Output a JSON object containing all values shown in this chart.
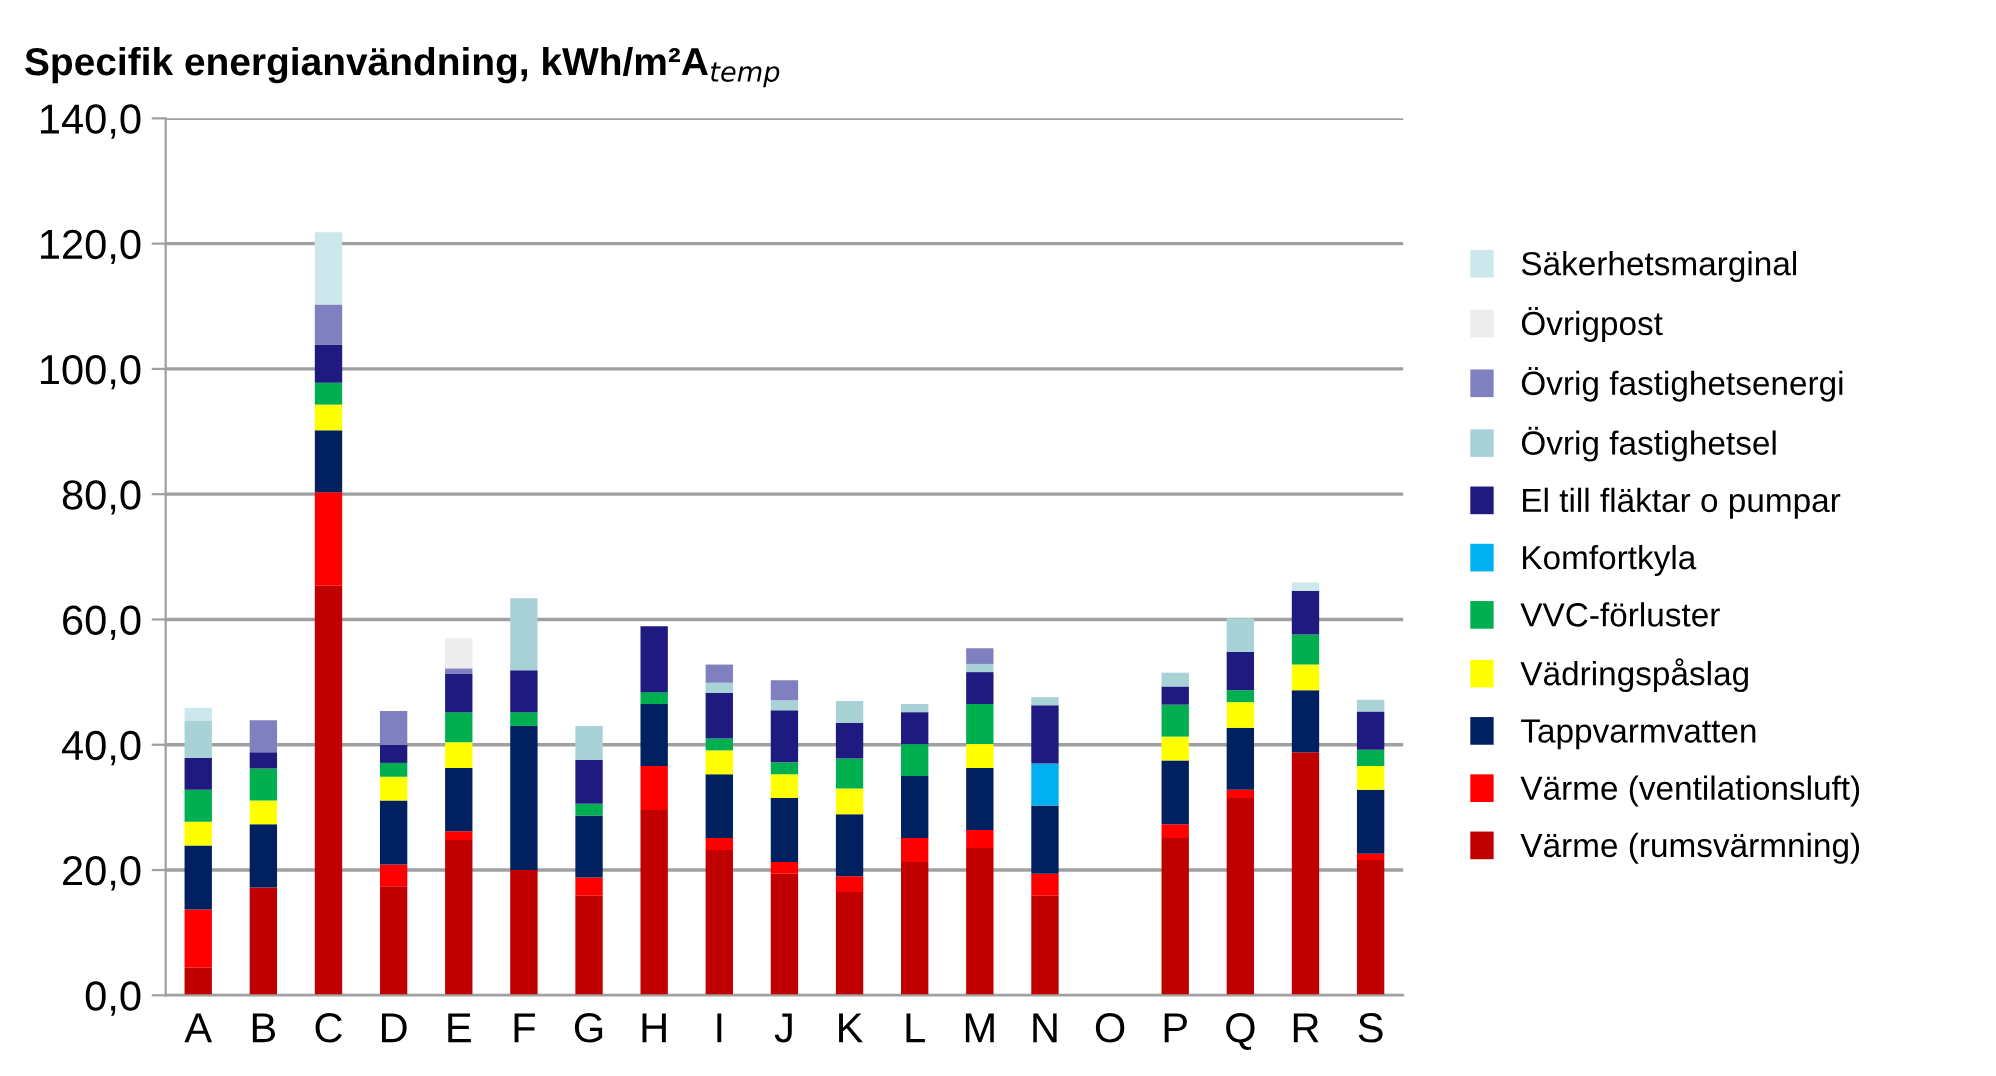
{
  "chart_data": {
    "type": "bar",
    "stacked": true,
    "title": "Specifik energianvändning, kWh/m²A$_{temp}$",
    "categories": [
      "A",
      "B",
      "C",
      "D",
      "E",
      "F",
      "G",
      "H",
      "I",
      "J",
      "K",
      "L",
      "M",
      "N",
      "O",
      "P",
      "Q",
      "R",
      "S"
    ],
    "ylim": [
      0,
      140
    ],
    "yticks": [
      {
        "value": 0,
        "label": "0,0"
      },
      {
        "value": 20,
        "label": "20,0"
      },
      {
        "value": 40,
        "label": "40,0"
      },
      {
        "value": 60,
        "label": "60,0"
      },
      {
        "value": 80,
        "label": "80,0"
      },
      {
        "value": 100,
        "label": "100,0"
      },
      {
        "value": 120,
        "label": "120,0"
      },
      {
        "value": 140,
        "label": "140,0"
      }
    ],
    "grid": "y",
    "legend": "right",
    "series": [
      {
        "name": "Värme (rumsvärmning)",
        "color": "#c00000",
        "values": [
          4.4,
          17.2,
          65.4,
          17.4,
          24.8,
          20.0,
          15.9,
          29.6,
          23.2,
          19.4,
          16.5,
          21.3,
          23.5,
          15.9,
          null,
          25.1,
          31.5,
          38.8,
          21.6
        ]
      },
      {
        "name": "Värme (ventilationsluft)",
        "color": "#ff0000",
        "values": [
          9.3,
          null,
          14.9,
          3.5,
          1.4,
          null,
          2.9,
          7.0,
          1.9,
          1.9,
          2.5,
          3.8,
          2.9,
          3.5,
          null,
          2.2,
          1.3,
          null,
          1.0
        ]
      },
      {
        "name": "Tappvarmvatten",
        "color": "#002060",
        "values": [
          10.2,
          10.1,
          9.9,
          10.2,
          10.1,
          23.0,
          9.9,
          9.9,
          10.2,
          10.2,
          9.9,
          9.9,
          9.9,
          10.9,
          null,
          10.2,
          9.9,
          9.9,
          10.2
        ]
      },
      {
        "name": "Vädringspåslag",
        "color": "#ffff00",
        "values": [
          3.8,
          3.8,
          4.1,
          3.8,
          4.1,
          null,
          null,
          null,
          3.8,
          3.8,
          4.1,
          null,
          3.8,
          null,
          null,
          3.8,
          4.1,
          4.1,
          3.8
        ]
      },
      {
        "name": "VVC-förluster",
        "color": "#00b050",
        "values": [
          5.1,
          5.1,
          3.5,
          2.2,
          4.8,
          2.2,
          1.9,
          1.9,
          1.9,
          1.9,
          4.8,
          5.1,
          6.4,
          null,
          null,
          5.1,
          1.9,
          4.8,
          2.6
        ]
      },
      {
        "name": "Komfortkyla",
        "color": "#00b0f0",
        "values": [
          null,
          null,
          null,
          null,
          null,
          null,
          null,
          null,
          null,
          null,
          null,
          null,
          null,
          6.7,
          null,
          null,
          null,
          null,
          null
        ]
      },
      {
        "name": "El till fläktar o pumpar",
        "color": "#1f1a80",
        "values": [
          5.1,
          2.6,
          6.1,
          2.9,
          6.1,
          6.7,
          7.0,
          10.5,
          7.3,
          8.3,
          5.7,
          5.1,
          5.1,
          9.3,
          null,
          2.9,
          6.1,
          7.0,
          6.1
        ]
      },
      {
        "name": "Övrig fastighetsel",
        "color": "#a9d2d6",
        "values": [
          5.9,
          null,
          null,
          null,
          null,
          11.5,
          5.4,
          null,
          1.6,
          1.6,
          3.5,
          1.3,
          1.3,
          1.3,
          null,
          2.2,
          5.4,
          null,
          1.9
        ]
      },
      {
        "name": "Övrig fastighetsenergi",
        "color": "#8080c0",
        "values": [
          null,
          5.1,
          6.4,
          5.4,
          0.9,
          null,
          null,
          null,
          2.9,
          3.2,
          null,
          null,
          2.5,
          null,
          null,
          null,
          null,
          null,
          null
        ]
      },
      {
        "name": "Övrigpost",
        "color": "#ececec",
        "values": [
          null,
          null,
          null,
          null,
          4.8,
          null,
          null,
          null,
          null,
          null,
          null,
          null,
          null,
          null,
          null,
          null,
          null,
          null,
          null
        ]
      },
      {
        "name": "Säkerhetsmarginal",
        "color": "#cde8ec",
        "values": [
          2.1,
          null,
          11.5,
          null,
          null,
          null,
          null,
          null,
          null,
          null,
          null,
          null,
          null,
          null,
          null,
          null,
          null,
          1.3,
          null
        ]
      }
    ]
  }
}
